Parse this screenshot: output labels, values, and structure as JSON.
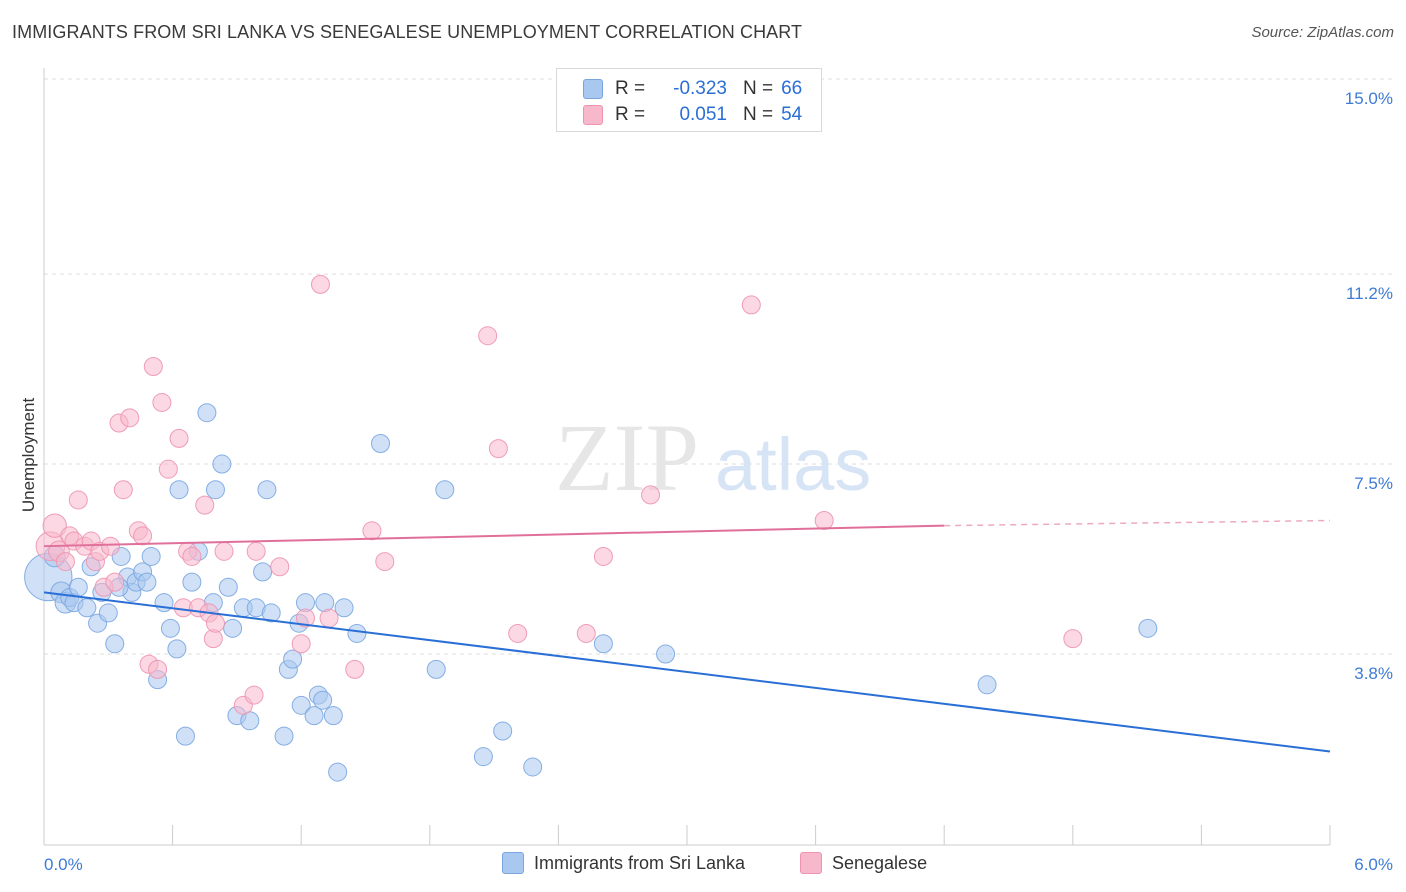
{
  "title": "IMMIGRANTS FROM SRI LANKA VS SENEGALESE UNEMPLOYMENT CORRELATION CHART",
  "source": "Source: ZipAtlas.com",
  "watermark": {
    "zip": "ZIP",
    "atlas": "atlas"
  },
  "legend": {
    "rows": [
      {
        "r_label": "R =",
        "r_value": "-0.323",
        "n_label": "N =",
        "n_value": "66"
      },
      {
        "r_label": "R =",
        "r_value": "0.051",
        "n_label": "N =",
        "n_value": "54"
      }
    ]
  },
  "colors": {
    "blue_fill": "#a9c8f0",
    "blue_stroke": "#7aa6e0",
    "blue_line": "#2a6fd6",
    "pink_fill": "#f7b8cc",
    "pink_stroke": "#ee93b0",
    "pink_line": "#e0709a",
    "tick_label": "#3d7bd6",
    "grid": "#dddddd"
  },
  "chart_data": {
    "type": "scatter",
    "title": "IMMIGRANTS FROM SRI LANKA VS SENEGALESE UNEMPLOYMENT CORRELATION CHART",
    "xlabel": "",
    "ylabel": "Unemployment",
    "xlim": [
      0,
      6.0
    ],
    "ylim": [
      0.5,
      15.5
    ],
    "x_tick_labels": [
      {
        "value": 0,
        "label": "0.0%"
      },
      {
        "value": 6.0,
        "label": "6.0%"
      }
    ],
    "y_ticks": [
      {
        "value": 3.8,
        "label": "3.8%"
      },
      {
        "value": 7.5,
        "label": "7.5%"
      },
      {
        "value": 11.2,
        "label": "11.2%"
      },
      {
        "value": 15.0,
        "label": "15.0%"
      }
    ],
    "legend_position": "top-center",
    "grid": true,
    "series": [
      {
        "name": "Immigrants from Sri Lanka",
        "color": "#a9c8f0",
        "trend": {
          "x": [
            0,
            6.0
          ],
          "y": [
            5.0,
            1.9
          ]
        },
        "points": [
          [
            0.02,
            5.3
          ],
          [
            0.05,
            5.7
          ],
          [
            0.08,
            5.0
          ],
          [
            0.1,
            4.8
          ],
          [
            0.12,
            4.9
          ],
          [
            0.14,
            4.8
          ],
          [
            0.16,
            5.1
          ],
          [
            0.2,
            4.7
          ],
          [
            0.22,
            5.5
          ],
          [
            0.25,
            4.4
          ],
          [
            0.27,
            5.0
          ],
          [
            0.3,
            4.6
          ],
          [
            0.33,
            4.0
          ],
          [
            0.36,
            5.7
          ],
          [
            0.39,
            5.3
          ],
          [
            0.41,
            5.0
          ],
          [
            0.43,
            5.2
          ],
          [
            0.46,
            5.4
          ],
          [
            0.48,
            5.2
          ],
          [
            0.5,
            5.7
          ],
          [
            0.53,
            3.3
          ],
          [
            0.56,
            4.8
          ],
          [
            0.59,
            4.3
          ],
          [
            0.62,
            3.9
          ],
          [
            0.63,
            7.0
          ],
          [
            0.66,
            2.2
          ],
          [
            0.69,
            5.2
          ],
          [
            0.72,
            5.8
          ],
          [
            0.76,
            8.5
          ],
          [
            0.79,
            4.8
          ],
          [
            0.8,
            7.0
          ],
          [
            0.83,
            7.5
          ],
          [
            0.86,
            5.1
          ],
          [
            0.88,
            4.3
          ],
          [
            0.9,
            2.6
          ],
          [
            0.93,
            4.7
          ],
          [
            0.96,
            2.5
          ],
          [
            0.99,
            4.7
          ],
          [
            1.02,
            5.4
          ],
          [
            1.04,
            7.0
          ],
          [
            1.06,
            4.6
          ],
          [
            1.12,
            2.2
          ],
          [
            1.14,
            3.5
          ],
          [
            1.16,
            3.7
          ],
          [
            1.19,
            4.4
          ],
          [
            1.2,
            2.8
          ],
          [
            1.22,
            4.8
          ],
          [
            1.26,
            2.6
          ],
          [
            1.28,
            3.0
          ],
          [
            1.3,
            2.9
          ],
          [
            1.31,
            4.8
          ],
          [
            1.35,
            2.6
          ],
          [
            1.37,
            1.5
          ],
          [
            1.4,
            4.7
          ],
          [
            1.46,
            4.2
          ],
          [
            1.57,
            7.9
          ],
          [
            1.83,
            3.5
          ],
          [
            1.87,
            7.0
          ],
          [
            2.05,
            1.8
          ],
          [
            2.14,
            2.3
          ],
          [
            2.28,
            1.6
          ],
          [
            2.61,
            4.0
          ],
          [
            2.9,
            3.8
          ],
          [
            4.4,
            3.2
          ],
          [
            5.15,
            4.3
          ],
          [
            0.35,
            5.1
          ]
        ],
        "sizes": [
          34,
          14,
          14,
          14,
          12,
          12,
          12,
          12,
          12,
          12,
          12,
          12,
          12,
          12,
          12,
          12,
          12,
          12,
          12,
          12,
          12,
          12,
          12,
          12,
          12,
          12,
          12,
          12,
          12,
          12,
          12,
          12,
          12,
          12,
          12,
          12,
          12,
          12,
          12,
          12,
          12,
          12,
          12,
          12,
          12,
          12,
          12,
          12,
          12,
          12,
          12,
          12,
          12,
          12,
          12,
          12,
          12,
          12,
          12,
          12,
          12,
          12,
          12,
          12,
          12,
          12
        ]
      },
      {
        "name": "Senegalese",
        "color": "#f7b8cc",
        "trend": {
          "x": [
            0,
            4.2
          ],
          "y": [
            5.9,
            6.3
          ],
          "dash_x": [
            4.2,
            6.0
          ],
          "dash_y": [
            6.3,
            6.4
          ]
        },
        "points": [
          [
            0.03,
            5.9
          ],
          [
            0.05,
            6.3
          ],
          [
            0.07,
            5.8
          ],
          [
            0.1,
            5.6
          ],
          [
            0.12,
            6.1
          ],
          [
            0.14,
            6.0
          ],
          [
            0.16,
            6.8
          ],
          [
            0.19,
            5.9
          ],
          [
            0.22,
            6.0
          ],
          [
            0.24,
            5.6
          ],
          [
            0.26,
            5.8
          ],
          [
            0.28,
            5.1
          ],
          [
            0.31,
            5.9
          ],
          [
            0.33,
            5.2
          ],
          [
            0.35,
            8.3
          ],
          [
            0.37,
            7.0
          ],
          [
            0.4,
            8.4
          ],
          [
            0.44,
            6.2
          ],
          [
            0.46,
            6.1
          ],
          [
            0.49,
            3.6
          ],
          [
            0.51,
            9.4
          ],
          [
            0.53,
            3.5
          ],
          [
            0.55,
            8.7
          ],
          [
            0.58,
            7.4
          ],
          [
            0.63,
            8.0
          ],
          [
            0.65,
            4.7
          ],
          [
            0.67,
            5.8
          ],
          [
            0.69,
            5.7
          ],
          [
            0.72,
            4.7
          ],
          [
            0.75,
            6.7
          ],
          [
            0.77,
            4.6
          ],
          [
            0.79,
            4.1
          ],
          [
            0.8,
            4.4
          ],
          [
            0.84,
            5.8
          ],
          [
            0.93,
            2.8
          ],
          [
            0.98,
            3.0
          ],
          [
            0.99,
            5.8
          ],
          [
            1.1,
            5.5
          ],
          [
            1.2,
            4.0
          ],
          [
            1.22,
            4.5
          ],
          [
            1.29,
            11.0
          ],
          [
            1.33,
            4.5
          ],
          [
            1.45,
            3.5
          ],
          [
            1.53,
            6.2
          ],
          [
            1.59,
            5.6
          ],
          [
            2.07,
            10.0
          ],
          [
            2.12,
            7.8
          ],
          [
            2.21,
            4.2
          ],
          [
            2.53,
            4.2
          ],
          [
            2.61,
            5.7
          ],
          [
            2.83,
            6.9
          ],
          [
            3.3,
            10.6
          ],
          [
            3.64,
            6.4
          ],
          [
            4.8,
            4.1
          ]
        ],
        "sizes": [
          20,
          16,
          14,
          12,
          12,
          12,
          12,
          12,
          12,
          12,
          12,
          12,
          12,
          12,
          12,
          12,
          12,
          12,
          12,
          12,
          12,
          12,
          12,
          12,
          12,
          12,
          12,
          12,
          12,
          12,
          12,
          12,
          12,
          12,
          12,
          12,
          12,
          12,
          12,
          12,
          12,
          12,
          12,
          12,
          12,
          12,
          12,
          12,
          12,
          12,
          12,
          12,
          12,
          12
        ]
      }
    ]
  }
}
